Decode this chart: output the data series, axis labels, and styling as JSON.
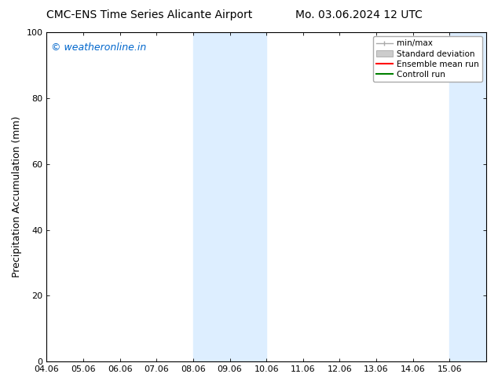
{
  "title_left": "CMC-ENS Time Series Alicante Airport",
  "title_right": "Mo. 03.06.2024 12 UTC",
  "ylabel": "Precipitation Accumulation (mm)",
  "xlim": [
    0,
    12
  ],
  "ylim": [
    0,
    100
  ],
  "yticks": [
    0,
    20,
    40,
    60,
    80,
    100
  ],
  "xtick_labels": [
    "04.06",
    "05.06",
    "06.06",
    "07.06",
    "08.06",
    "09.06",
    "10.06",
    "11.06",
    "12.06",
    "13.06",
    "14.06",
    "15.06"
  ],
  "xtick_positions": [
    0,
    1,
    2,
    3,
    4,
    5,
    6,
    7,
    8,
    9,
    10,
    11
  ],
  "shaded_regions": [
    {
      "x_start": 4,
      "x_end": 6,
      "color": "#ddeeff"
    },
    {
      "x_start": 11,
      "x_end": 12,
      "color": "#ddeeff"
    }
  ],
  "watermark_text": "© weatheronline.in",
  "watermark_color": "#0066cc",
  "background_color": "#ffffff",
  "plot_bg_color": "#ffffff",
  "legend_items": [
    {
      "label": "min/max",
      "color": "#bbbbbb",
      "type": "errorbar"
    },
    {
      "label": "Standard deviation",
      "color": "#cccccc",
      "type": "bar"
    },
    {
      "label": "Ensemble mean run",
      "color": "#ff0000",
      "type": "line"
    },
    {
      "label": "Controll run",
      "color": "#008000",
      "type": "line"
    }
  ],
  "title_fontsize": 10,
  "tick_fontsize": 8,
  "legend_fontsize": 7.5,
  "ylabel_fontsize": 9,
  "watermark_fontsize": 9
}
